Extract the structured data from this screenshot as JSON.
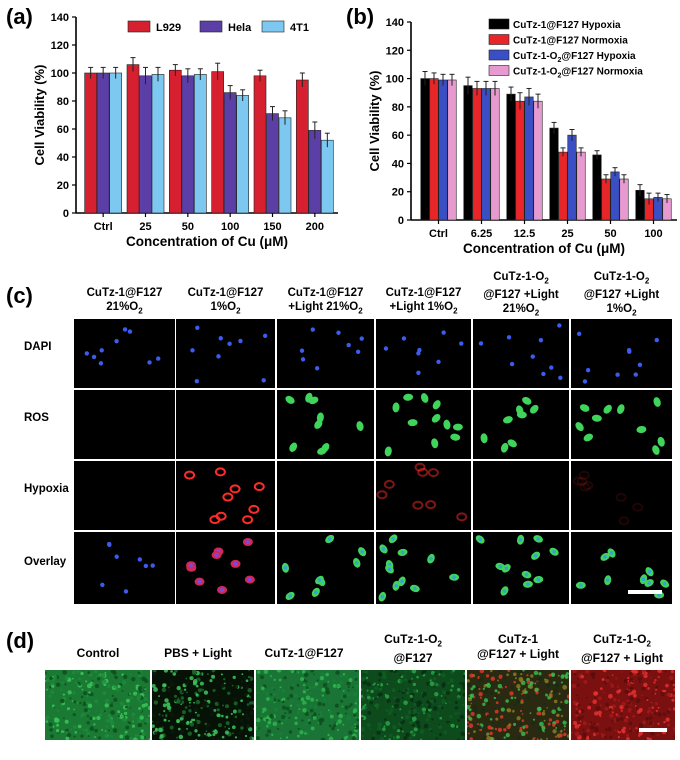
{
  "panels": {
    "a": "(a)",
    "b": "(b)",
    "c": "(c)",
    "d": "(d)"
  },
  "chart_data": [
    {
      "type": "bar",
      "id": "a",
      "categories": [
        "Ctrl",
        "25",
        "50",
        "100",
        "150",
        "200"
      ],
      "series": [
        {
          "name": "L929",
          "color": "#d62030",
          "values": [
            100,
            106,
            102,
            101,
            98,
            95
          ],
          "errors": [
            4,
            5,
            4,
            6,
            4,
            5
          ]
        },
        {
          "name": "Hela",
          "color": "#5b3fa6",
          "values": [
            100,
            98,
            98,
            86,
            71,
            59
          ],
          "errors": [
            4,
            6,
            5,
            5,
            5,
            6
          ]
        },
        {
          "name": "4T1",
          "color": "#7dc8f0",
          "values": [
            100,
            99,
            99,
            84,
            68,
            52
          ],
          "errors": [
            4,
            5,
            4,
            4,
            5,
            5
          ]
        }
      ],
      "title": "",
      "xlabel": "Concentration of Cu (μM)",
      "ylabel": "Cell Viability (%)",
      "ylim": [
        0,
        140
      ],
      "yticks": [
        "0",
        "20",
        "40",
        "60",
        "80",
        "100",
        "120",
        "140"
      ],
      "grid": false,
      "legend": "top"
    },
    {
      "type": "bar",
      "id": "b",
      "categories": [
        "Ctrl",
        "6.25",
        "12.5",
        "25",
        "50",
        "100"
      ],
      "series": [
        {
          "name": "CuTz-1@F127 Hypoxia",
          "color": "#000000",
          "values": [
            100,
            95,
            89,
            65,
            46,
            21
          ],
          "errors": [
            5,
            6,
            5,
            4,
            3,
            4
          ]
        },
        {
          "name": "CuTz-1@F127 Normoxia",
          "color": "#e8262a",
          "values": [
            100,
            93,
            84,
            48,
            29,
            15
          ],
          "errors": [
            4,
            5,
            6,
            3,
            3,
            4
          ]
        },
        {
          "name": "CuTz-1-O2@F127 Hypoxia",
          "color": "#3a4fc4",
          "values": [
            99,
            93,
            87,
            60,
            34,
            16
          ],
          "errors": [
            4,
            5,
            6,
            4,
            3,
            3
          ]
        },
        {
          "name": "CuTz-1-O2@F127 Normoxia",
          "color": "#e79ad0",
          "values": [
            99,
            93,
            84,
            48,
            29,
            15
          ],
          "errors": [
            4,
            5,
            5,
            3,
            3,
            3
          ]
        }
      ],
      "legend_labels": [
        {
          "prefix": "CuTz-1@F127 Hypoxia",
          "sub": "",
          "suffix": ""
        },
        {
          "prefix": "CuTz-1@F127 Normoxia",
          "sub": "",
          "suffix": ""
        },
        {
          "prefix": "CuTz-1-O",
          "sub": "2",
          "suffix": "@F127 Hypoxia"
        },
        {
          "prefix": "CuTz-1-O",
          "sub": "2",
          "suffix": "@F127 Normoxia"
        }
      ],
      "title": "",
      "xlabel": "Concentration of Cu (μM)",
      "ylabel": "Cell Viability (%)",
      "ylim": [
        0,
        140
      ],
      "yticks": [
        "0",
        "20",
        "40",
        "60",
        "80",
        "100",
        "120",
        "140"
      ],
      "grid": false,
      "legend": "top-right"
    }
  ],
  "panel_c": {
    "columns": [
      {
        "line1": "CuTz-1@F127",
        "line2": "21%O",
        "sub2": "2",
        "tail2": ""
      },
      {
        "line1": "CuTz-1@F127",
        "line2": "1%O",
        "sub2": "2",
        "tail2": ""
      },
      {
        "line1": "CuTz-1@F127",
        "line2": "+Light  21%O",
        "sub2": "2",
        "tail2": ""
      },
      {
        "line1": "CuTz-1@F127",
        "line2": "+Light  1%O",
        "sub2": "2",
        "tail2": ""
      },
      {
        "line1": "CuTz-1-O",
        "line1_sub": "2",
        "line2": "@F127 +Light",
        "line3": "21%O",
        "sub3": "2"
      },
      {
        "line1": "CuTz-1-O",
        "line1_sub": "2",
        "line2": "@F127 +Light",
        "line3": "1%O",
        "sub3": "2"
      }
    ],
    "rows": [
      "DAPI",
      "ROS",
      "Hypoxia",
      "Overlay"
    ]
  },
  "panel_d": {
    "labels": [
      {
        "line1": "Control",
        "line2": ""
      },
      {
        "line1": "PBS + Light",
        "line2": ""
      },
      {
        "line1": "CuTz-1@F127",
        "line2": ""
      },
      {
        "line1": "CuTz-1-O",
        "sub": "2",
        "line2": "@F127"
      },
      {
        "line1": "CuTz-1",
        "line2": "@F127 + Light"
      },
      {
        "line1": "CuTz-1-O",
        "sub": "2",
        "line2": "@F127 + Light"
      }
    ]
  }
}
